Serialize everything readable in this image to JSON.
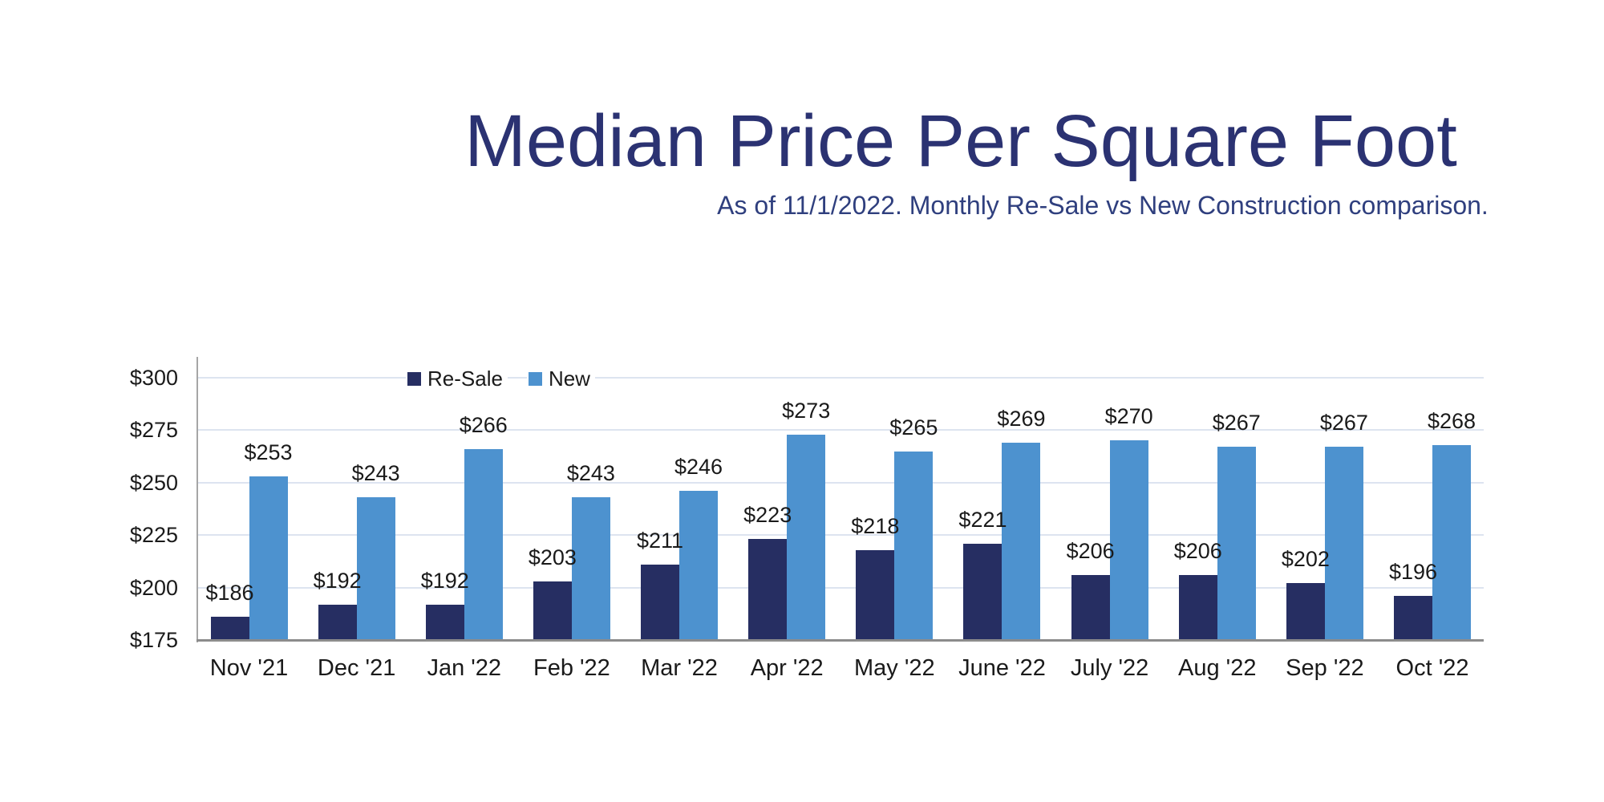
{
  "chart_data": {
    "type": "bar",
    "title": "Median Price Per Square Foot",
    "subtitle": "As of 11/1/2022. Monthly Re-Sale vs New Construction comparison.",
    "categories": [
      "Nov '21",
      "Dec '21",
      "Jan '22",
      "Feb '22",
      "Mar '22",
      "Apr '22",
      "May '22",
      "June '22",
      "July '22",
      "Aug '22",
      "Sep '22",
      "Oct '22"
    ],
    "series": [
      {
        "name": "Re-Sale",
        "color": "#262e62",
        "values": [
          186,
          192,
          192,
          203,
          211,
          223,
          218,
          221,
          206,
          206,
          202,
          196
        ]
      },
      {
        "name": "New",
        "color": "#4d92cf",
        "values": [
          253,
          243,
          266,
          243,
          246,
          273,
          265,
          269,
          270,
          267,
          267,
          268
        ]
      }
    ],
    "value_prefix": "$",
    "ylim": [
      175,
      300
    ],
    "yticks": [
      300,
      275,
      250,
      225,
      200,
      175
    ],
    "ytick_prefix": "$",
    "grid": "horizontal",
    "data_labels": true,
    "legend_position": "top-left-of-plot",
    "colors": {
      "title": "#2b3272",
      "subtitle": "#2f3f7e",
      "text": "#1a1a1a",
      "gridline": "#dde4f0",
      "axis_line": "#a6a6a6",
      "baseline": "#8c8c8c"
    }
  }
}
